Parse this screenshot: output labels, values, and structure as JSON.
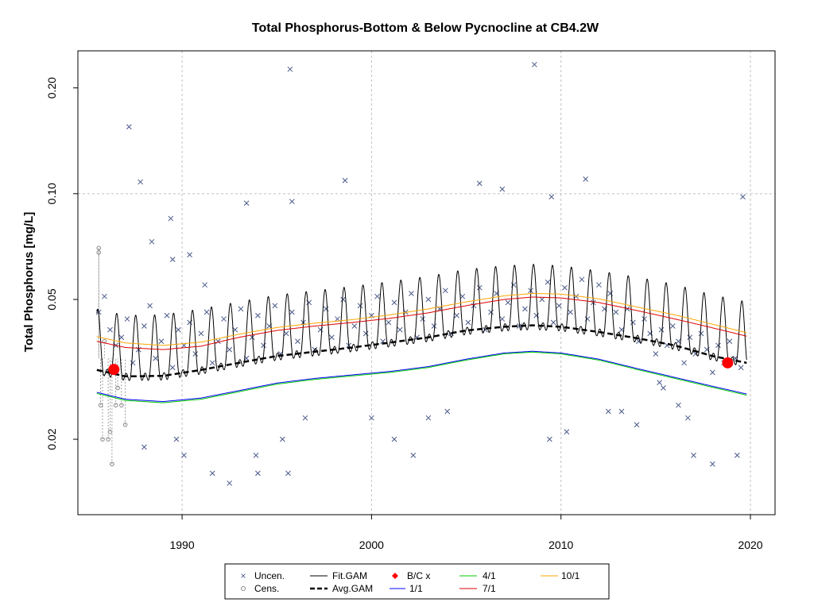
{
  "chart_data": {
    "type": "line",
    "title": "Total Phosphorus-Bottom & Below Pycnocline at CB4.2W",
    "xlabel": "",
    "ylabel": "Total Phosphorus [mg/L]",
    "y_scale": "log",
    "xlim": [
      1984.5,
      2021.3
    ],
    "ylim": [
      0.0122,
      0.255
    ],
    "x_ticks": [
      1990,
      2000,
      2010,
      2020
    ],
    "x_tick_labels": [
      "1990",
      "2000",
      "2010",
      "2020"
    ],
    "y_ticks": [
      0.02,
      0.05,
      0.1,
      0.2
    ],
    "y_tick_labels": [
      "0.02",
      "0.05",
      "0.10",
      "0.20"
    ],
    "grid": true,
    "legend_placement": "bottom",
    "colors": {
      "points": "#4a5a8a",
      "censored": "#888888",
      "fit_gam": "#000000",
      "avg_gam": "#000000",
      "bc": "#ff0000",
      "s_1_1": "#0000ff",
      "s_4_1": "#00cc00",
      "s_7_1": "#dd0000",
      "s_10_1": "#ffa500",
      "grid": "#c0c0c0"
    },
    "series": [
      {
        "name": "Avg.GAM",
        "x": [
          1985.5,
          1987,
          1989,
          1991,
          1993,
          1995,
          1997,
          1999,
          2001,
          2003,
          2005,
          2007,
          2008.5,
          2010,
          2012,
          2014,
          2016,
          2018,
          2019.8
        ],
        "values": [
          0.0315,
          0.0302,
          0.0303,
          0.0315,
          0.033,
          0.0345,
          0.0355,
          0.0365,
          0.0377,
          0.039,
          0.0408,
          0.0418,
          0.0422,
          0.0418,
          0.0404,
          0.0388,
          0.037,
          0.0345,
          0.033
        ]
      },
      {
        "name": "1/1",
        "x": [
          1985.5,
          1987,
          1989,
          1991,
          1993,
          1995,
          1997,
          1999,
          2001,
          2003,
          2005,
          2007,
          2008.5,
          2010,
          2012,
          2014,
          2016,
          2018,
          2019.8
        ],
        "values": [
          0.0272,
          0.026,
          0.0256,
          0.0262,
          0.0275,
          0.0289,
          0.0298,
          0.0305,
          0.0312,
          0.0322,
          0.0338,
          0.0352,
          0.0356,
          0.0352,
          0.0338,
          0.0318,
          0.03,
          0.0283,
          0.0269
        ]
      },
      {
        "name": "4/1",
        "x": [
          1985.5,
          1987,
          1989,
          1991,
          1993,
          1995,
          1997,
          1999,
          2001,
          2003,
          2005,
          2007,
          2008.5,
          2010,
          2012,
          2014,
          2016,
          2018,
          2019.8
        ],
        "values": [
          0.027,
          0.0258,
          0.0254,
          0.026,
          0.0273,
          0.0287,
          0.0296,
          0.0303,
          0.031,
          0.032,
          0.0336,
          0.035,
          0.0354,
          0.035,
          0.0336,
          0.0316,
          0.0298,
          0.0281,
          0.0267
        ]
      },
      {
        "name": "7/1",
        "x": [
          1985.5,
          1987,
          1989,
          1991,
          1993,
          1995,
          1997,
          1999,
          2001,
          2003,
          2005,
          2007,
          2008.5,
          2010,
          2012,
          2014,
          2016,
          2018,
          2019.8
        ],
        "values": [
          0.038,
          0.0365,
          0.036,
          0.0368,
          0.039,
          0.0408,
          0.042,
          0.043,
          0.0442,
          0.0458,
          0.048,
          0.05,
          0.0508,
          0.0505,
          0.049,
          0.0465,
          0.044,
          0.0415,
          0.0393
        ]
      },
      {
        "name": "10/1",
        "x": [
          1985.5,
          1987,
          1989,
          1991,
          1993,
          1995,
          1997,
          1999,
          2001,
          2003,
          2005,
          2007,
          2008.5,
          2010,
          2012,
          2014,
          2016,
          2018,
          2019.8
        ],
        "values": [
          0.0392,
          0.0376,
          0.037,
          0.0378,
          0.0398,
          0.0416,
          0.0428,
          0.0438,
          0.0452,
          0.047,
          0.0492,
          0.0512,
          0.052,
          0.0518,
          0.0502,
          0.0476,
          0.0452,
          0.0425,
          0.0402
        ]
      }
    ],
    "fit_gam": {
      "name": "Fit.GAM",
      "year_start": 1985.5,
      "year_end": 2019.8,
      "peak_phase": 0.55
    },
    "bc_points": {
      "name": "B/C x",
      "x": [
        1986.4,
        2018.8
      ],
      "values": [
        0.0316,
        0.033
      ]
    },
    "uncensored_points": {
      "name": "Uncen.",
      "x": [
        1985.6,
        1985.9,
        1986.2,
        1986.5,
        1986.8,
        1987.1,
        1987.4,
        1987.7,
        1988.0,
        1988.3,
        1988.6,
        1988.9,
        1989.2,
        1989.5,
        1989.8,
        1990.1,
        1990.4,
        1990.7,
        1991.0,
        1991.3,
        1991.6,
        1991.9,
        1992.2,
        1992.5,
        1992.8,
        1993.1,
        1993.4,
        1993.7,
        1994.0,
        1994.3,
        1994.6,
        1994.9,
        1995.2,
        1995.5,
        1995.8,
        1996.1,
        1996.4,
        1996.7,
        1997.0,
        1997.3,
        1997.6,
        1997.9,
        1998.2,
        1998.5,
        1998.8,
        1999.1,
        1999.4,
        1999.7,
        2000.0,
        2000.3,
        2000.6,
        2000.9,
        2001.2,
        2001.5,
        2001.8,
        2002.1,
        2002.4,
        2002.7,
        2003.0,
        2003.3,
        2003.6,
        2003.9,
        2004.2,
        2004.5,
        2004.8,
        2005.1,
        2005.4,
        2005.7,
        2006.0,
        2006.3,
        2006.6,
        2006.9,
        2007.2,
        2007.5,
        2007.8,
        2008.1,
        2008.4,
        2008.7,
        2009.0,
        2009.3,
        2009.6,
        2009.9,
        2010.2,
        2010.5,
        2010.8,
        2011.1,
        2011.4,
        2011.7,
        2012.0,
        2012.3,
        2012.6,
        2012.9,
        2013.2,
        2013.5,
        2013.8,
        2014.1,
        2014.4,
        2014.7,
        2015.0,
        2015.3,
        2015.6,
        2015.9,
        2016.2,
        2016.5,
        2016.8,
        2017.1,
        2017.4,
        2017.7,
        2018.0,
        2018.3,
        2018.6,
        2018.9,
        2019.2,
        2019.5,
        1987.2,
        1995.7,
        2008.6,
        1987.8,
        1998.6,
        2005.7,
        2006.9,
        2009.5,
        2011.3,
        2019.6,
        1995.8,
        1993.4,
        1989.4,
        1988.4,
        1989.5,
        1990.4,
        1991.2,
        1988.0,
        1989.7,
        1990.1,
        1995.3,
        1995.6,
        2001.2,
        2002.2,
        2013.2,
        2009.4,
        2012.5,
        2019.3,
        1991.6,
        1992.5,
        1994.0,
        1993.9,
        1996.5,
        2000.0,
        2003.0,
        2004.0,
        2010.3,
        2014.0,
        2016.7,
        2017.0,
        2018.0,
        2016.2,
        2015.4,
        2015.2
      ],
      "values": [
        0.046,
        0.051,
        0.041,
        0.037,
        0.039,
        0.044,
        0.033,
        0.036,
        0.042,
        0.048,
        0.034,
        0.038,
        0.045,
        0.032,
        0.041,
        0.037,
        0.043,
        0.035,
        0.04,
        0.046,
        0.033,
        0.038,
        0.044,
        0.036,
        0.041,
        0.047,
        0.034,
        0.039,
        0.045,
        0.037,
        0.042,
        0.048,
        0.035,
        0.04,
        0.046,
        0.038,
        0.043,
        0.049,
        0.036,
        0.041,
        0.047,
        0.039,
        0.044,
        0.05,
        0.037,
        0.042,
        0.048,
        0.04,
        0.045,
        0.051,
        0.038,
        0.043,
        0.049,
        0.041,
        0.046,
        0.052,
        0.039,
        0.044,
        0.05,
        0.042,
        0.047,
        0.053,
        0.04,
        0.045,
        0.051,
        0.043,
        0.048,
        0.054,
        0.041,
        0.046,
        0.052,
        0.044,
        0.049,
        0.055,
        0.042,
        0.047,
        0.053,
        0.045,
        0.05,
        0.056,
        0.043,
        0.048,
        0.054,
        0.046,
        0.051,
        0.057,
        0.044,
        0.049,
        0.055,
        0.047,
        0.052,
        0.046,
        0.041,
        0.047,
        0.043,
        0.038,
        0.044,
        0.04,
        0.035,
        0.041,
        0.037,
        0.042,
        0.038,
        0.033,
        0.039,
        0.035,
        0.04,
        0.036,
        0.031,
        0.037,
        0.033,
        0.038,
        0.034,
        0.032,
        0.155,
        0.226,
        0.233,
        0.108,
        0.109,
        0.107,
        0.103,
        0.098,
        0.11,
        0.098,
        0.095,
        0.094,
        0.085,
        0.073,
        0.065,
        0.067,
        0.055,
        0.019,
        0.02,
        0.018,
        0.02,
        0.016,
        0.02,
        0.018,
        0.024,
        0.02,
        0.024,
        0.018,
        0.016,
        0.015,
        0.016,
        0.018,
        0.023,
        0.023,
        0.023,
        0.024,
        0.021,
        0.022,
        0.023,
        0.018,
        0.017,
        0.025,
        0.028,
        0.029
      ]
    },
    "censored_points": {
      "name": "Cens.",
      "x": [
        1985.6,
        1985.6,
        1985.7,
        1985.8,
        1986.2,
        1986.3,
        1986.5,
        1986.6,
        1986.8,
        1987.0,
        1986.1,
        1985.9
      ],
      "values": [
        0.07,
        0.068,
        0.025,
        0.02,
        0.021,
        0.017,
        0.025,
        0.028,
        0.025,
        0.022,
        0.02,
        0.038
      ]
    },
    "legend": {
      "uncen": "Uncen.",
      "cens": "Cens.",
      "fit": "Fit.GAM",
      "avg": "Avg.GAM",
      "bc": "B/C x",
      "s11": "1/1",
      "s41": "4/1",
      "s71": "7/1",
      "s101": "10/1"
    }
  }
}
